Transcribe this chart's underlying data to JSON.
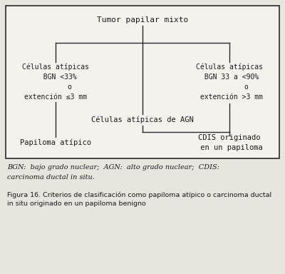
{
  "bg_color": "#e8e4de",
  "box_bg_color": "#f5f2ee",
  "line_color": "#2a2a2a",
  "text_color": "#1a1a1a",
  "border_color": "#2a2a2a",
  "top_node": "Tumor papilar mixto",
  "left_node": "Células atípicas\n  BGN <33%\n       o\nextención ≤3 mm",
  "center_node": "Células atípicas de AGN",
  "right_node": "Células atípicas\n BGN 33 a <90%\n        o\n extención >3 mm",
  "bottom_left": "Papiloma atípico",
  "bottom_right": "CDIS originado\n en un papiloma",
  "legend_line1": "BGN:  bajo grado nuclear;  AGN:  alto grado nuclear;  CDIS:",
  "legend_line2": "carcinoma ductal in situ.",
  "caption": "Figura 16. Criterios de clasificación como papiloma atípico o carcinoma ductal\nin situ originado en un papiloma benigno"
}
